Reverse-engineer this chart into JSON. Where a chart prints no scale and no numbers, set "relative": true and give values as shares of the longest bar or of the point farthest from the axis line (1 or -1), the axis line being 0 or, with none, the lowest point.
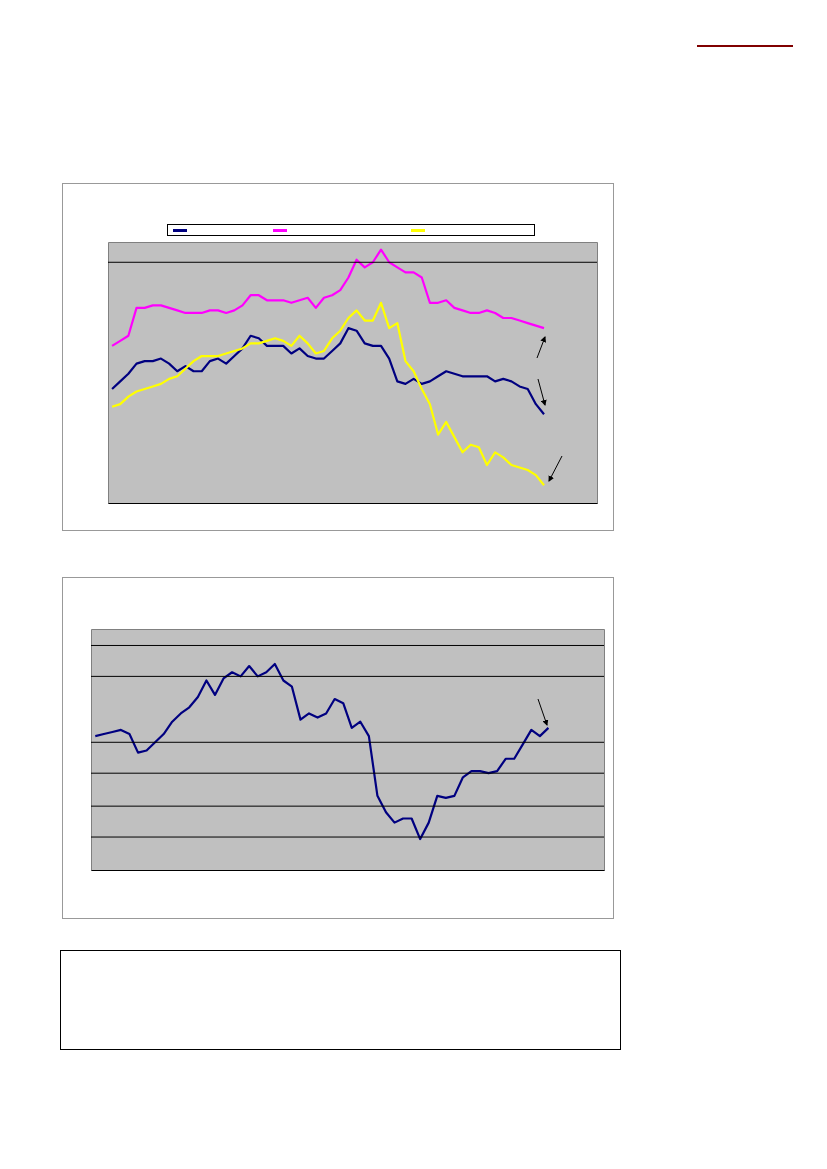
{
  "chart_data": [
    {
      "type": "line",
      "relative": true,
      "categories": [
        null,
        null,
        null,
        null,
        null,
        null,
        null,
        null,
        null,
        null,
        null,
        null,
        null,
        null,
        null,
        null,
        null,
        null,
        null,
        null,
        null,
        null,
        null,
        null,
        null,
        null,
        null,
        null,
        null,
        null,
        null,
        null,
        null,
        null,
        null,
        null,
        null,
        null,
        null,
        null,
        null,
        null,
        null,
        null,
        null,
        null,
        null,
        null,
        null,
        null,
        null,
        null,
        null,
        null,
        null,
        null,
        null,
        null,
        null,
        null
      ],
      "series": [
        {
          "color": "#000080",
          "values": [
            0.45,
            0.48,
            0.51,
            0.55,
            0.56,
            0.56,
            0.57,
            0.55,
            0.52,
            0.54,
            0.52,
            0.52,
            0.56,
            0.57,
            0.55,
            0.58,
            0.61,
            0.66,
            0.65,
            0.62,
            0.62,
            0.62,
            0.59,
            0.61,
            0.58,
            0.57,
            0.57,
            0.6,
            0.63,
            0.69,
            0.68,
            0.63,
            0.62,
            0.62,
            0.57,
            0.48,
            0.47,
            0.49,
            0.47,
            0.48,
            0.5,
            0.52,
            0.51,
            0.5,
            0.5,
            0.5,
            0.5,
            0.48,
            0.49,
            0.48,
            0.46,
            0.45,
            0.39,
            0.35,
            null,
            null,
            null,
            null,
            null,
            null
          ]
        },
        {
          "color": "#ff00ff",
          "values": [
            0.62,
            0.64,
            0.66,
            0.77,
            0.77,
            0.78,
            0.78,
            0.77,
            0.76,
            0.75,
            0.75,
            0.75,
            0.76,
            0.76,
            0.75,
            0.76,
            0.78,
            0.82,
            0.82,
            0.8,
            0.8,
            0.8,
            0.79,
            0.8,
            0.81,
            0.77,
            0.81,
            0.82,
            0.84,
            0.89,
            0.96,
            0.93,
            0.95,
            1.0,
            0.95,
            0.93,
            0.91,
            0.91,
            0.89,
            0.79,
            0.79,
            0.8,
            0.77,
            0.76,
            0.75,
            0.75,
            0.76,
            0.75,
            0.73,
            0.73,
            0.72,
            0.71,
            0.7,
            0.69,
            null,
            null,
            null,
            null,
            null,
            null
          ]
        },
        {
          "color": "#ffff00",
          "values": [
            0.38,
            0.39,
            0.42,
            0.44,
            0.45,
            0.46,
            0.47,
            0.49,
            0.5,
            0.53,
            0.56,
            0.58,
            0.58,
            0.58,
            0.59,
            0.6,
            0.61,
            0.63,
            0.63,
            0.64,
            0.65,
            0.64,
            0.62,
            0.66,
            0.63,
            0.59,
            0.6,
            0.65,
            0.68,
            0.73,
            0.76,
            0.72,
            0.72,
            0.79,
            0.69,
            0.71,
            0.56,
            0.52,
            0.45,
            0.39,
            0.27,
            0.32,
            0.26,
            0.2,
            0.23,
            0.22,
            0.15,
            0.2,
            0.18,
            0.15,
            0.14,
            0.13,
            0.11,
            0.07,
            null,
            null,
            null,
            null,
            null,
            null
          ]
        }
      ],
      "ref_lines": [
        {
          "axis": "y",
          "value": 0.95,
          "color": "#000000"
        }
      ]
    },
    {
      "type": "line",
      "relative": true,
      "categories": [
        null,
        null,
        null,
        null,
        null,
        null,
        null,
        null,
        null,
        null,
        null,
        null,
        null,
        null,
        null,
        null,
        null,
        null,
        null,
        null,
        null,
        null,
        null,
        null,
        null,
        null,
        null,
        null,
        null,
        null,
        null,
        null,
        null,
        null,
        null,
        null,
        null,
        null,
        null,
        null,
        null,
        null,
        null,
        null,
        null,
        null,
        null,
        null,
        null,
        null,
        null,
        null,
        null,
        null,
        null,
        null,
        null,
        null,
        null,
        null
      ],
      "series": [
        {
          "color": "#000080",
          "values": [
            0.65,
            0.66,
            0.67,
            0.68,
            0.66,
            0.57,
            0.58,
            0.62,
            0.66,
            0.72,
            0.76,
            0.79,
            0.84,
            0.92,
            0.85,
            0.93,
            0.96,
            0.94,
            0.99,
            0.94,
            0.96,
            1.0,
            0.92,
            0.89,
            0.73,
            0.76,
            0.74,
            0.76,
            0.83,
            0.81,
            0.69,
            0.72,
            0.65,
            0.36,
            0.28,
            0.23,
            0.25,
            0.25,
            0.15,
            0.23,
            0.36,
            0.35,
            0.36,
            0.45,
            0.48,
            0.48,
            0.47,
            0.48,
            0.54,
            0.54,
            0.61,
            0.68,
            0.65,
            0.69,
            null,
            null,
            null,
            null,
            null,
            null
          ]
        }
      ],
      "ref_lines": [
        {
          "axis": "y",
          "value": 1.09,
          "color": "#000000"
        },
        {
          "axis": "y",
          "value": 0.94,
          "color": "#000000"
        },
        {
          "axis": "y",
          "value": 0.62,
          "color": "#000000"
        },
        {
          "axis": "y",
          "value": 0.47,
          "color": "#000000"
        },
        {
          "axis": "y",
          "value": 0.31,
          "color": "#000000"
        },
        {
          "axis": "y",
          "value": 0.16,
          "color": "#000000"
        }
      ]
    }
  ]
}
